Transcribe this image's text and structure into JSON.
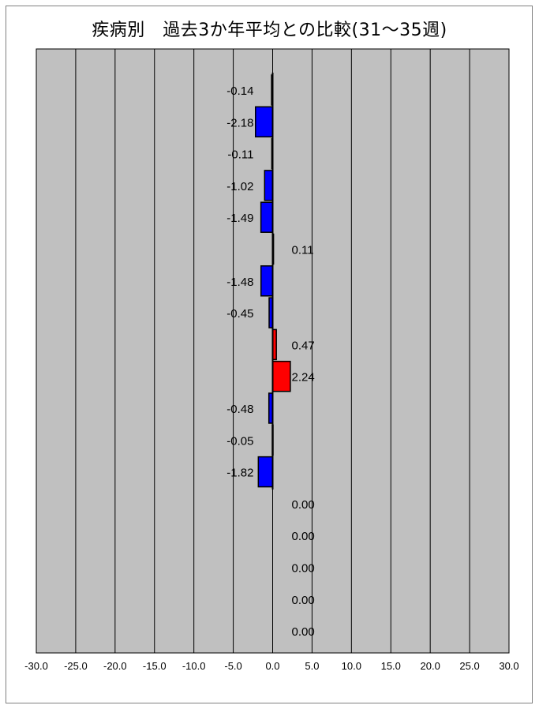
{
  "chart_data": {
    "type": "bar",
    "orientation": "horizontal",
    "title": "疾病別　過去3か年平均との比較(31～35週)",
    "xlim": [
      -30,
      30
    ],
    "x_ticks": [
      -30,
      -25,
      -20,
      -15,
      -10,
      -5,
      0,
      5,
      10,
      15,
      20,
      25,
      30
    ],
    "x_tick_labels": [
      "-30.0",
      "-25.0",
      "-20.0",
      "-15.0",
      "-10.0",
      "-5.0",
      "0.0",
      "5.0",
      "10.0",
      "15.0",
      "20.0",
      "25.0",
      "30.0"
    ],
    "grid": "vertical",
    "values": [
      -0.14,
      -2.18,
      -0.11,
      -1.02,
      -1.49,
      0.11,
      -1.48,
      -0.45,
      0.47,
      2.24,
      -0.48,
      -0.05,
      -1.82,
      0.0,
      0.0,
      0.0,
      0.0,
      0.0
    ],
    "value_labels": [
      "-0.14",
      "-2.18",
      "-0.11",
      "-1.02",
      "-1.49",
      "0.11",
      "-1.48",
      "-0.45",
      "0.47",
      "2.24",
      "-0.48",
      "-0.05",
      "-1.82",
      "0.00",
      "0.00",
      "0.00",
      "0.00",
      "0.00"
    ],
    "colors": {
      "negative": "#0000ff",
      "positive": "#ff0000",
      "plot_background": "#c0c0c0",
      "gridline": "#000000"
    }
  }
}
